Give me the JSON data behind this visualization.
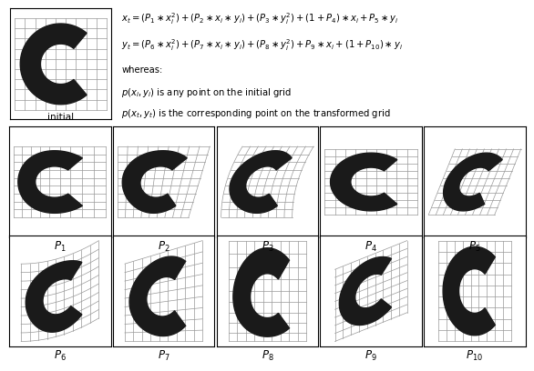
{
  "bg_color": "#ffffff",
  "grid_color": "#999999",
  "letter_color": "#1a1a1a",
  "n_grid": 10,
  "initial_label": "initial",
  "param_labels": [
    "P_1",
    "P_2",
    "P_3",
    "P_4",
    "P_5",
    "P_6",
    "P_7",
    "P_8",
    "P_9",
    "P_{10}"
  ],
  "params": [
    [
      0.0,
      0.0,
      0.0,
      0.0,
      0.0,
      0.0,
      0.0,
      0.0,
      0.0,
      0.0
    ],
    [
      0.3,
      0.0,
      0.0,
      0.0,
      0.0,
      0.0,
      0.0,
      0.0,
      0.0,
      0.0
    ],
    [
      0.0,
      0.3,
      0.0,
      0.0,
      0.0,
      0.0,
      0.0,
      0.0,
      0.0,
      0.0
    ],
    [
      0.0,
      0.0,
      0.3,
      0.0,
      0.0,
      0.0,
      0.0,
      0.0,
      0.0,
      0.0
    ],
    [
      0.0,
      0.0,
      0.0,
      0.4,
      0.0,
      0.0,
      0.0,
      0.0,
      0.0,
      0.0
    ],
    [
      0.0,
      0.0,
      0.0,
      0.0,
      0.4,
      0.0,
      0.0,
      0.0,
      0.0,
      0.0
    ],
    [
      0.0,
      0.0,
      0.0,
      0.0,
      0.0,
      0.3,
      0.0,
      0.0,
      0.0,
      0.0
    ],
    [
      0.0,
      0.0,
      0.0,
      0.0,
      0.0,
      0.0,
      0.3,
      0.0,
      0.0,
      0.0
    ],
    [
      0.0,
      0.0,
      0.0,
      0.0,
      0.0,
      0.0,
      0.0,
      0.3,
      0.0,
      0.0
    ],
    [
      0.0,
      0.0,
      0.0,
      0.0,
      0.0,
      0.0,
      0.0,
      0.0,
      0.4,
      0.0
    ],
    [
      0.0,
      0.0,
      0.0,
      0.0,
      0.0,
      0.0,
      0.0,
      0.0,
      0.0,
      0.4
    ]
  ],
  "formula_line1": "x_t = (P_1 * x_i^2) + (P_2 * x_i * y_i) + (P_3 * y_i^2) + ( 1 + P_4 ) * x_i + P_5 * y_i",
  "formula_line2": "y_t = (P_6 * x_i^2) + (P_7 * x_i * y_i) + (P_8 * y_i^2) + P_9 * x_i + ( 1 + P_10 ) * y_i",
  "whereas": "whereas:",
  "desc1": "p( x_i , y_i ) is any point on the initial grid",
  "desc2": "p( x_t , y_t ) is the corresponding point on the transformed grid"
}
